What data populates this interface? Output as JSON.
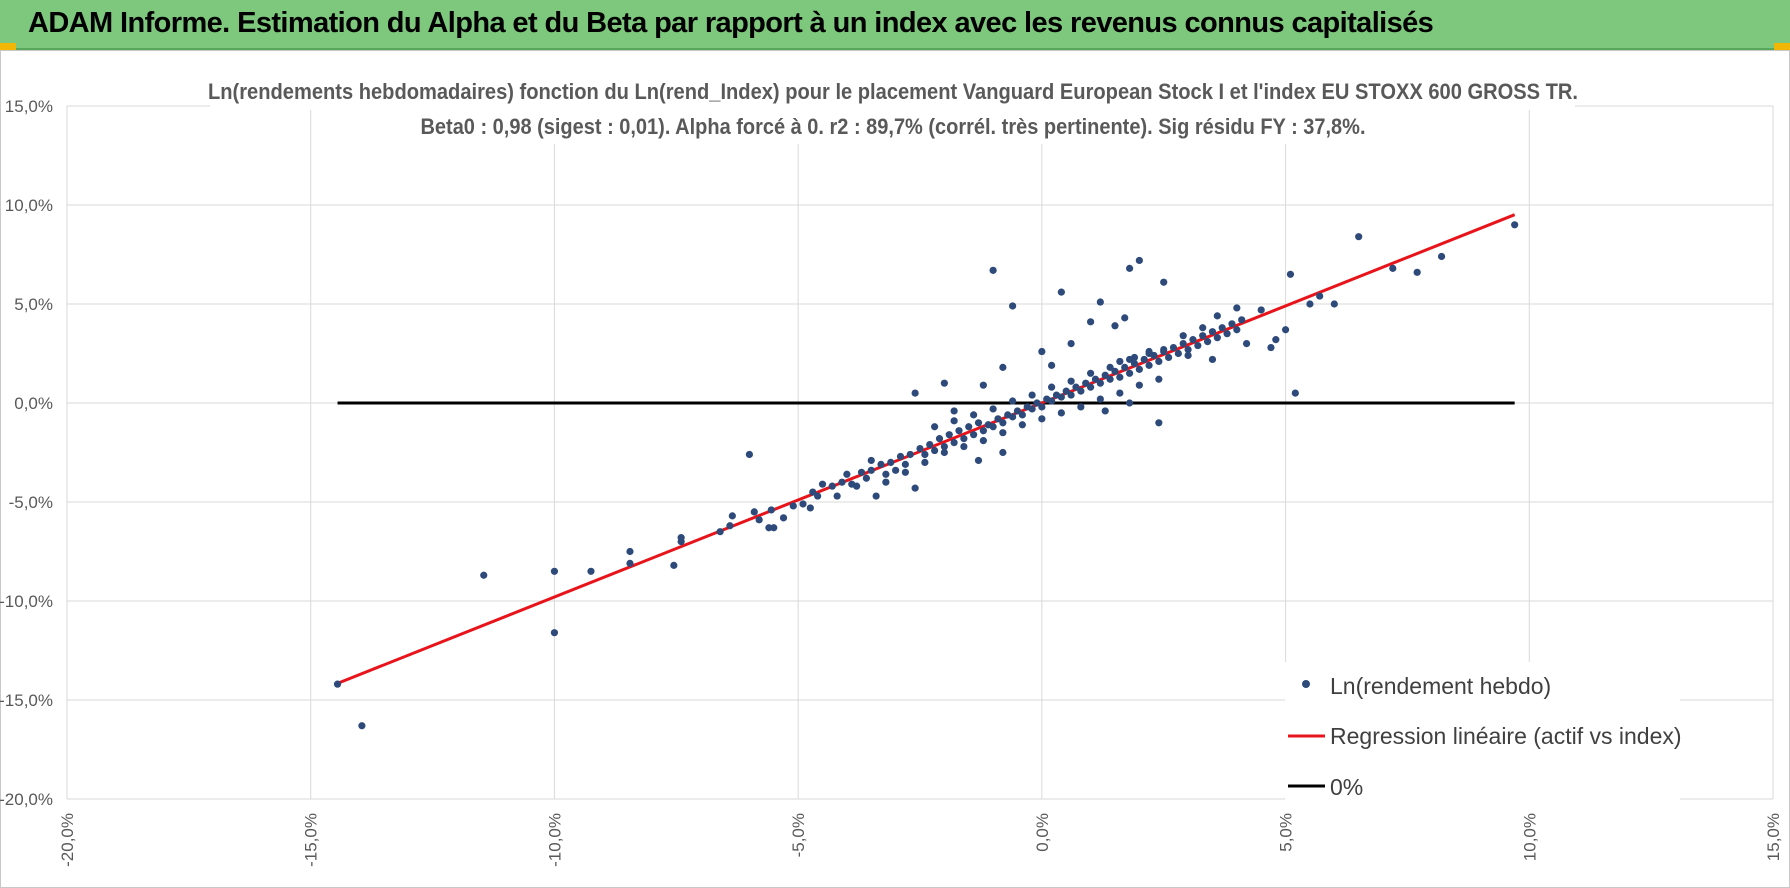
{
  "header": {
    "title": "ADAM Informe. Estimation du Alpha et du Beta par rapport à un index avec les revenus connus capitalisés"
  },
  "colors": {
    "header_bg": "#7dc87d",
    "corner_accent": "#f2b705",
    "points": "#2e4a7a",
    "regression": "#e8141b",
    "zero_line": "#000000",
    "grid": "#d9d9d9"
  },
  "chart_data": {
    "type": "scatter",
    "title": "Ln(rendements hebdomadaires) fonction du Ln(rend_Index) pour le placement Vanguard European Stock I et l'index EU STOXX 600 GROSS TR.",
    "subtitle": "Beta0 : 0,98 (sigest : 0,01). Alpha forcé à 0. r2 : 89,7% (corrél. très pertinente). Sig résidu FY : 37,8%.",
    "xlim": [
      -0.2,
      0.15
    ],
    "ylim": [
      -0.2,
      0.15
    ],
    "x_ticks": [
      -0.2,
      -0.15,
      -0.1,
      -0.05,
      0.0,
      0.05,
      0.1,
      0.15
    ],
    "y_ticks": [
      -0.2,
      -0.15,
      -0.1,
      -0.05,
      0.0,
      0.05,
      0.1,
      0.15
    ],
    "x_tick_labels": [
      "-20,0%",
      "-15,0%",
      "-10,0%",
      "-5,0%",
      "0,0%",
      "5,0%",
      "10,0%",
      "15,0%"
    ],
    "y_tick_labels": [
      "-20,0%",
      "-15,0%",
      "-10,0%",
      "-5,0%",
      "0,0%",
      "5,0%",
      "10,0%",
      "15,0%"
    ],
    "grid": true,
    "legend_position": "bottom-right",
    "series": [
      {
        "name": "Ln(rendement hebdo)",
        "kind": "scatter",
        "points": [
          [
            -0.1445,
            -0.142
          ],
          [
            -0.1395,
            -0.163
          ],
          [
            -0.1145,
            -0.087
          ],
          [
            -0.1,
            -0.085
          ],
          [
            -0.1,
            -0.116
          ],
          [
            -0.0925,
            -0.085
          ],
          [
            -0.0845,
            -0.081
          ],
          [
            -0.0845,
            -0.075
          ],
          [
            -0.0755,
            -0.082
          ],
          [
            -0.074,
            -0.068
          ],
          [
            -0.074,
            -0.07
          ],
          [
            -0.066,
            -0.065
          ],
          [
            -0.064,
            -0.062
          ],
          [
            -0.0635,
            -0.057
          ],
          [
            -0.06,
            -0.026
          ],
          [
            -0.059,
            -0.055
          ],
          [
            -0.058,
            -0.059
          ],
          [
            -0.056,
            -0.063
          ],
          [
            -0.0555,
            -0.054
          ],
          [
            -0.055,
            -0.063
          ],
          [
            -0.053,
            -0.058
          ],
          [
            -0.051,
            -0.052
          ],
          [
            -0.049,
            -0.051
          ],
          [
            -0.047,
            -0.045
          ],
          [
            -0.046,
            -0.047
          ],
          [
            -0.0475,
            -0.053
          ],
          [
            -0.045,
            -0.041
          ],
          [
            -0.043,
            -0.042
          ],
          [
            -0.042,
            -0.047
          ],
          [
            -0.041,
            -0.04
          ],
          [
            -0.04,
            -0.036
          ],
          [
            -0.039,
            -0.041
          ],
          [
            -0.038,
            -0.042
          ],
          [
            -0.037,
            -0.035
          ],
          [
            -0.036,
            -0.038
          ],
          [
            -0.035,
            -0.034
          ],
          [
            -0.034,
            -0.047
          ],
          [
            -0.033,
            -0.031
          ],
          [
            -0.032,
            -0.036
          ],
          [
            -0.031,
            -0.03
          ],
          [
            -0.03,
            -0.034
          ],
          [
            -0.029,
            -0.027
          ],
          [
            -0.028,
            -0.031
          ],
          [
            -0.027,
            -0.026
          ],
          [
            -0.026,
            -0.043
          ],
          [
            -0.025,
            -0.023
          ],
          [
            -0.024,
            -0.026
          ],
          [
            -0.023,
            -0.021
          ],
          [
            -0.022,
            -0.024
          ],
          [
            -0.021,
            -0.018
          ],
          [
            -0.02,
            -0.022
          ],
          [
            -0.019,
            -0.016
          ],
          [
            -0.018,
            -0.02
          ],
          [
            -0.017,
            -0.014
          ],
          [
            -0.016,
            -0.018
          ],
          [
            -0.015,
            -0.012
          ],
          [
            -0.014,
            -0.016
          ],
          [
            -0.013,
            -0.01
          ],
          [
            -0.012,
            -0.014
          ],
          [
            -0.011,
            -0.011
          ],
          [
            -0.01,
            -0.012
          ],
          [
            -0.009,
            -0.008
          ],
          [
            -0.008,
            -0.01
          ],
          [
            -0.007,
            -0.006
          ],
          [
            -0.006,
            -0.007
          ],
          [
            -0.005,
            -0.004
          ],
          [
            -0.004,
            -0.006
          ],
          [
            -0.003,
            -0.002
          ],
          [
            -0.002,
            -0.003
          ],
          [
            -0.001,
            0.0
          ],
          [
            0.0,
            -0.002
          ],
          [
            0.001,
            0.002
          ],
          [
            0.002,
            0.001
          ],
          [
            0.003,
            0.004
          ],
          [
            0.004,
            0.003
          ],
          [
            0.005,
            0.006
          ],
          [
            0.006,
            0.004
          ],
          [
            0.007,
            0.008
          ],
          [
            0.008,
            0.006
          ],
          [
            0.009,
            0.01
          ],
          [
            0.01,
            0.008
          ],
          [
            0.011,
            0.012
          ],
          [
            0.012,
            0.01
          ],
          [
            0.013,
            0.014
          ],
          [
            0.014,
            0.012
          ],
          [
            0.015,
            0.016
          ],
          [
            0.016,
            0.013
          ],
          [
            0.017,
            0.018
          ],
          [
            0.018,
            0.015
          ],
          [
            0.019,
            0.02
          ],
          [
            0.02,
            0.017
          ],
          [
            0.021,
            0.022
          ],
          [
            0.022,
            0.019
          ],
          [
            0.023,
            0.024
          ],
          [
            0.024,
            0.021
          ],
          [
            0.025,
            0.026
          ],
          [
            0.026,
            0.023
          ],
          [
            0.027,
            0.028
          ],
          [
            0.028,
            0.025
          ],
          [
            0.029,
            0.03
          ],
          [
            0.03,
            0.027
          ],
          [
            0.031,
            0.032
          ],
          [
            0.032,
            0.029
          ],
          [
            0.033,
            0.034
          ],
          [
            0.034,
            0.031
          ],
          [
            0.035,
            0.036
          ],
          [
            0.036,
            0.033
          ],
          [
            0.037,
            0.038
          ],
          [
            0.038,
            0.035
          ],
          [
            0.039,
            0.04
          ],
          [
            0.04,
            0.037
          ],
          [
            0.041,
            0.042
          ],
          [
            -0.026,
            0.005
          ],
          [
            -0.018,
            -0.004
          ],
          [
            -0.013,
            -0.029
          ],
          [
            -0.008,
            -0.025
          ],
          [
            -0.01,
            0.067
          ],
          [
            -0.006,
            0.049
          ],
          [
            0.004,
            0.056
          ],
          [
            0.012,
            0.051
          ],
          [
            0.018,
            0.068
          ],
          [
            0.02,
            0.072
          ],
          [
            0.025,
            0.061
          ],
          [
            0.017,
            0.043
          ],
          [
            0.01,
            0.041
          ],
          [
            0.015,
            0.039
          ],
          [
            0.006,
            0.03
          ],
          [
            0.0,
            0.026
          ],
          [
            0.002,
            0.019
          ],
          [
            -0.008,
            0.018
          ],
          [
            -0.012,
            0.009
          ],
          [
            -0.02,
            0.01
          ],
          [
            0.024,
            -0.01
          ],
          [
            0.018,
            0.0
          ],
          [
            0.013,
            -0.004
          ],
          [
            0.03,
            0.024
          ],
          [
            0.035,
            0.022
          ],
          [
            0.042,
            0.03
          ],
          [
            0.047,
            0.028
          ],
          [
            0.052,
            0.005
          ],
          [
            0.045,
            0.047
          ],
          [
            0.051,
            0.065
          ],
          [
            0.057,
            0.054
          ],
          [
            0.06,
            0.05
          ],
          [
            0.065,
            0.084
          ],
          [
            0.072,
            0.068
          ],
          [
            0.077,
            0.066
          ],
          [
            0.082,
            0.074
          ],
          [
            0.097,
            0.09
          ],
          [
            0.048,
            0.032
          ],
          [
            0.055,
            0.05
          ],
          [
            0.05,
            0.037
          ],
          [
            0.04,
            0.048
          ],
          [
            0.036,
            0.044
          ],
          [
            0.033,
            0.038
          ],
          [
            0.029,
            0.034
          ],
          [
            0.025,
            0.027
          ],
          [
            0.022,
            0.025
          ],
          [
            0.019,
            0.023
          ],
          [
            0.016,
            0.021
          ],
          [
            -0.035,
            -0.029
          ],
          [
            -0.032,
            -0.04
          ],
          [
            -0.028,
            -0.035
          ],
          [
            -0.024,
            -0.03
          ],
          [
            -0.02,
            -0.025
          ],
          [
            -0.016,
            -0.022
          ],
          [
            -0.012,
            -0.019
          ],
          [
            -0.008,
            -0.015
          ],
          [
            -0.004,
            -0.011
          ],
          [
            0.0,
            -0.008
          ],
          [
            0.004,
            -0.005
          ],
          [
            0.008,
            -0.002
          ],
          [
            0.012,
            0.002
          ],
          [
            0.016,
            0.005
          ],
          [
            0.02,
            0.009
          ],
          [
            0.024,
            0.012
          ],
          [
            -0.022,
            -0.012
          ],
          [
            -0.018,
            -0.009
          ],
          [
            -0.014,
            -0.006
          ],
          [
            -0.01,
            -0.003
          ],
          [
            -0.006,
            0.001
          ],
          [
            -0.002,
            0.004
          ],
          [
            0.002,
            0.008
          ],
          [
            0.006,
            0.011
          ],
          [
            0.01,
            0.015
          ],
          [
            0.014,
            0.018
          ],
          [
            0.018,
            0.022
          ],
          [
            0.022,
            0.026
          ]
        ]
      },
      {
        "name": "Regression linéaire (actif vs index)",
        "kind": "line",
        "points": [
          [
            -0.1445,
            -0.1416
          ],
          [
            0.097,
            0.0951
          ]
        ]
      },
      {
        "name": "0%",
        "kind": "line",
        "points": [
          [
            -0.1445,
            0.0
          ],
          [
            0.097,
            0.0
          ]
        ]
      }
    ]
  }
}
